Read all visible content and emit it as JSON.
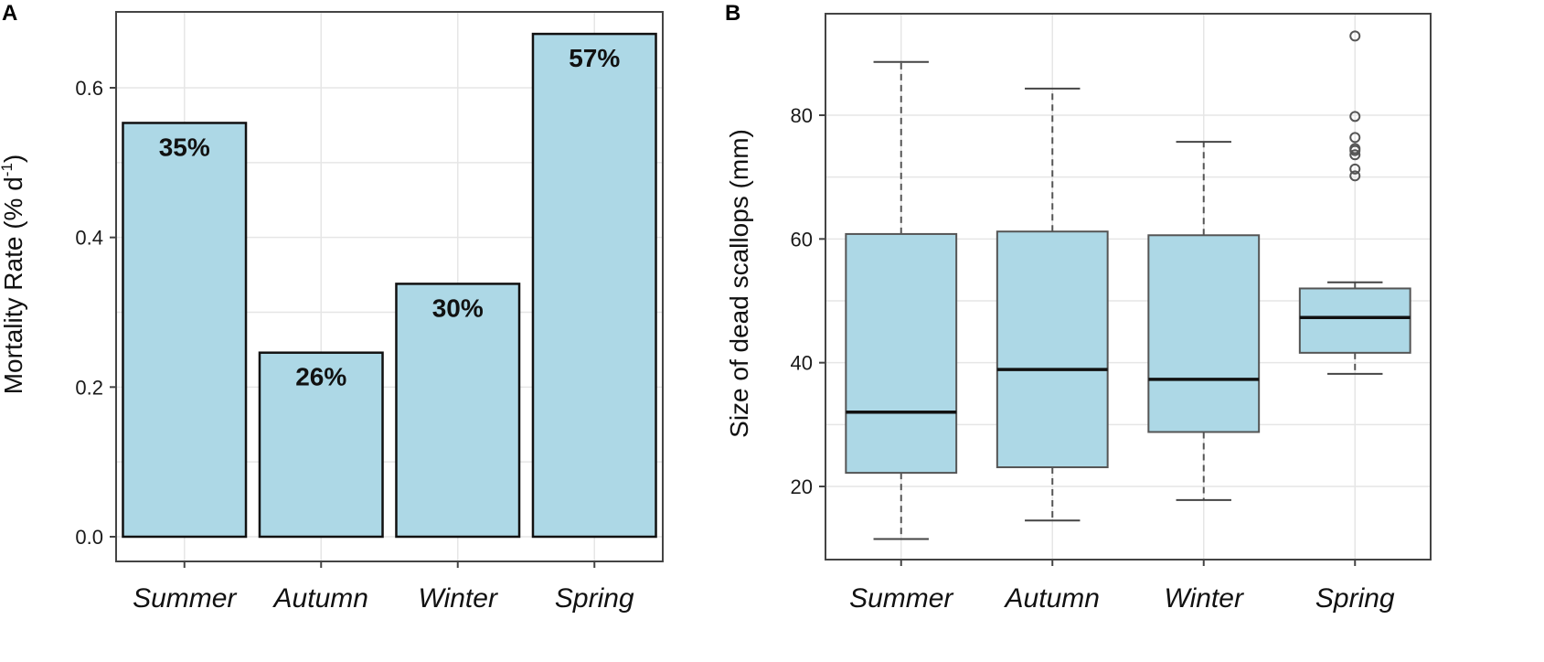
{
  "chart_data": [
    {
      "panel": "A",
      "type": "bar",
      "categories": [
        "Summer",
        "Autumn",
        "Winter",
        "Spring"
      ],
      "values": [
        0.553,
        0.246,
        0.338,
        0.672
      ],
      "data_labels": [
        "35%",
        "26%",
        "30%",
        "57%"
      ],
      "ylabel": "Mortality Rate (% d",
      "ylabel_sup": "-1",
      "ylabel_end": ")",
      "ylim": [
        0,
        0.7
      ],
      "yticks": [
        0.0,
        0.2,
        0.4,
        0.6
      ],
      "ytick_labels": [
        "0.0",
        "0.2",
        "0.4",
        "0.6"
      ],
      "grid": true,
      "bar_color": "#add8e6"
    },
    {
      "panel": "B",
      "type": "box",
      "categories": [
        "Summer",
        "Autumn",
        "Winter",
        "Spring"
      ],
      "boxes": [
        {
          "whisker_low": 11.5,
          "q1": 22.2,
          "median": 32.0,
          "q3": 60.8,
          "whisker_high": 88.6,
          "outliers": []
        },
        {
          "whisker_low": 14.5,
          "q1": 23.1,
          "median": 38.9,
          "q3": 61.2,
          "whisker_high": 84.3,
          "outliers": []
        },
        {
          "whisker_low": 17.8,
          "q1": 28.8,
          "median": 37.3,
          "q3": 60.6,
          "whisker_high": 75.7,
          "outliers": []
        },
        {
          "whisker_low": 38.2,
          "q1": 41.6,
          "median": 47.3,
          "q3": 52.0,
          "whisker_high": 53.0,
          "outliers": [
            70.2,
            71.3,
            73.6,
            74.3,
            74.6,
            76.4,
            79.8,
            92.8
          ]
        }
      ],
      "ylabel": "Size of dead scallops (mm)",
      "ylim": [
        8,
        96
      ],
      "yticks": [
        20,
        40,
        60,
        80
      ],
      "ytick_labels": [
        "20",
        "40",
        "60",
        "80"
      ],
      "grid": true,
      "box_color": "#add8e6"
    }
  ],
  "panels": [
    "A",
    "B"
  ]
}
